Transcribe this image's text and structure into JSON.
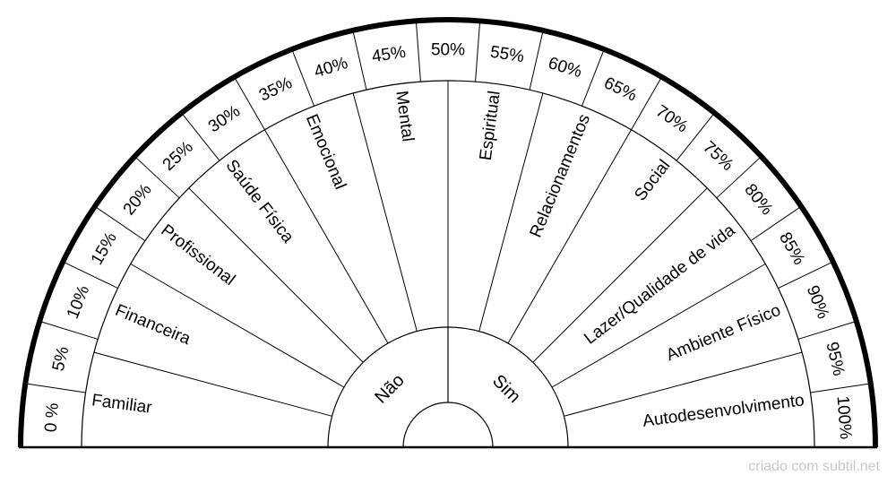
{
  "diagram": {
    "percent_labels": [
      "0 %",
      "5%",
      "10%",
      "15%",
      "20%",
      "25%",
      "30%",
      "35%",
      "40%",
      "45%",
      "50%",
      "55%",
      "60%",
      "65%",
      "70%",
      "75%",
      "80%",
      "85%",
      "90%",
      "95%",
      "100%"
    ],
    "category_labels": [
      "Familiar",
      "Financeira",
      "Profissional",
      "Saúde Física",
      "Emocional",
      "Mental",
      "Espiritual",
      "Relacionamentos",
      "Social",
      "Lazer/Qualidade de vida",
      "Ambiente Físico",
      "Autodesenvolvimento"
    ],
    "inner_labels": [
      "Não",
      "Sim"
    ],
    "colors": {
      "line": "#000000",
      "background": "#ffffff",
      "credit": "#c8c8c8"
    }
  },
  "credit": "criado com subtil.net"
}
